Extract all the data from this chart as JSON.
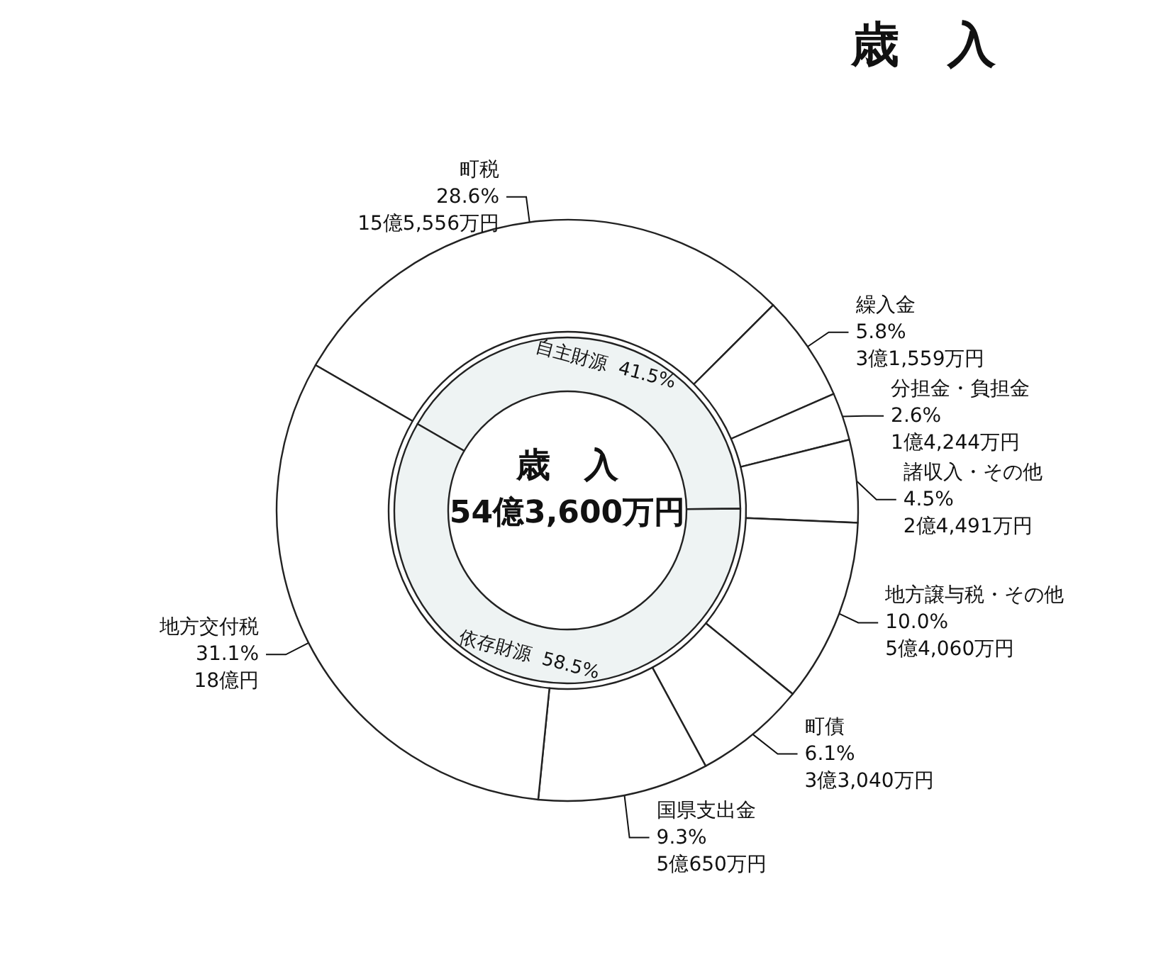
{
  "chart_data": [
    {
      "type": "donut",
      "title": "歳　入",
      "categories": [
        "町税",
        "繰入金",
        "分担金・負担金",
        "諸収入・その他",
        "地方譲与税・その他",
        "町債",
        "国県支出金",
        "地方交付税"
      ],
      "values": [
        28.6,
        5.8,
        2.6,
        4.5,
        10.0,
        6.1,
        9.3,
        31.1
      ],
      "value_labels": [
        "28.6%\n15億5,556万円",
        "5.8%\n3億1,559万円",
        "2.6%\n1億4,244万円",
        "4.5%\n2億4,491万円",
        "10.0%\n5億4,060万円",
        "6.1%\n3億3,040万円",
        "9.3%\n5億650万円",
        "31.1%\n18億円"
      ],
      "colors": [
        "#ffffff",
        "#ffffff",
        "#ffffff",
        "#ffffff",
        "#ffffff",
        "#ffffff",
        "#ffffff",
        "#ffffff"
      ]
    },
    {
      "type": "donut",
      "annotations": [
        "歳　入",
        "54億3,600万円"
      ],
      "categories": [
        "自主財源",
        "依存財源"
      ],
      "values": [
        41.5,
        58.5
      ],
      "value_labels": [
        "41.5%",
        "58.5%"
      ],
      "colors": [
        "#eef3f3",
        "#eef3f3"
      ]
    }
  ]
}
